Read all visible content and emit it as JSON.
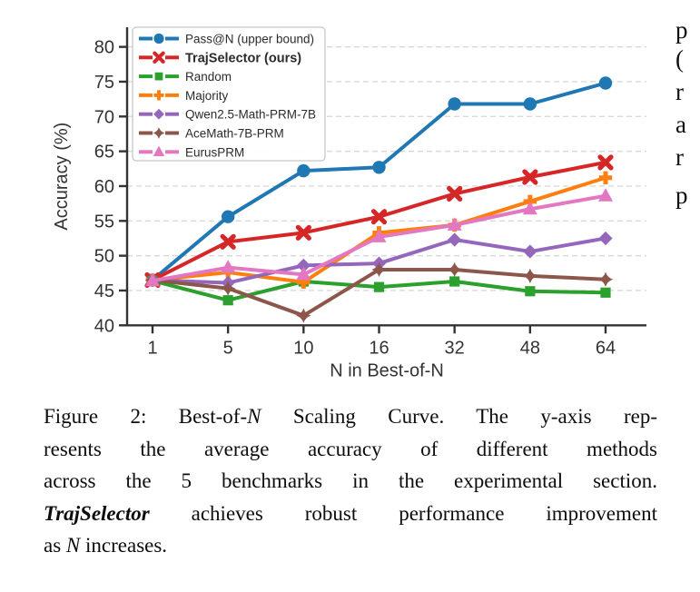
{
  "chart_data": {
    "type": "line",
    "title": "",
    "xlabel": "N in Best-of-N",
    "ylabel": "Accuracy (%)",
    "categories": [
      1,
      5,
      10,
      16,
      32,
      48,
      64
    ],
    "x_tick_labels": [
      "1",
      "5",
      "10",
      "16",
      "32",
      "48",
      "64"
    ],
    "y_ticks": [
      40,
      45,
      50,
      55,
      60,
      65,
      70,
      75,
      80
    ],
    "ylim": [
      40,
      82
    ],
    "grid": "horizontal-dashed",
    "legend_position": "upper-left",
    "axis_color": "#333333",
    "grid_color": "#d9d9d9",
    "series": [
      {
        "name": "Pass@N (upper bound)",
        "color": "#1f77b4",
        "marker": "circle",
        "bold": false,
        "values": [
          46.5,
          55.6,
          62.2,
          62.7,
          71.8,
          71.8,
          74.8
        ]
      },
      {
        "name": "TrajSelector (ours)",
        "color": "#d62728",
        "marker": "x",
        "bold": true,
        "values": [
          46.5,
          52.0,
          53.3,
          55.6,
          58.9,
          61.3,
          63.4
        ]
      },
      {
        "name": "Random",
        "color": "#2ca02c",
        "marker": "square",
        "bold": false,
        "values": [
          46.4,
          43.6,
          46.3,
          45.5,
          46.3,
          44.9,
          44.7
        ]
      },
      {
        "name": "Majority",
        "color": "#ff7f0e",
        "marker": "plus",
        "bold": false,
        "values": [
          46.5,
          47.6,
          46.2,
          53.3,
          54.4,
          57.8,
          61.2
        ]
      },
      {
        "name": "Qwen2.5-Math-PRM-7B",
        "color": "#9467bd",
        "marker": "diamond",
        "bold": false,
        "values": [
          46.5,
          46.1,
          48.6,
          48.9,
          52.3,
          50.6,
          52.5
        ]
      },
      {
        "name": "AceMath-7B-PRM",
        "color": "#8c564b",
        "marker": "thin-diamond",
        "bold": false,
        "values": [
          46.5,
          45.3,
          41.4,
          48.0,
          48.0,
          47.1,
          46.6
        ]
      },
      {
        "name": "EurusPRM",
        "color": "#e377c2",
        "marker": "triangle-up",
        "bold": false,
        "values": [
          46.4,
          48.3,
          47.3,
          52.7,
          54.4,
          56.7,
          58.6
        ]
      }
    ]
  },
  "caption": {
    "lines": [
      [
        {
          "t": "Figure 2: Best-of-"
        },
        {
          "t": "N",
          "i": 1
        },
        {
          "t": " Scaling Curve. The y-axis rep-"
        }
      ],
      [
        {
          "t": "resents the average accuracy of different methods"
        }
      ],
      [
        {
          "t": "across the 5 benchmarks in the experimental section."
        }
      ],
      [
        {
          "t": "TrajSelector",
          "b": 1,
          "i": 1
        },
        {
          "t": " achieves robust performance improvement"
        }
      ],
      [
        {
          "t": "as "
        },
        {
          "t": "N",
          "i": 1
        },
        {
          "t": " increases."
        }
      ]
    ]
  },
  "side_column": {
    "fragments": [
      "p",
      "(",
      "r",
      "a",
      "r",
      "p"
    ]
  }
}
